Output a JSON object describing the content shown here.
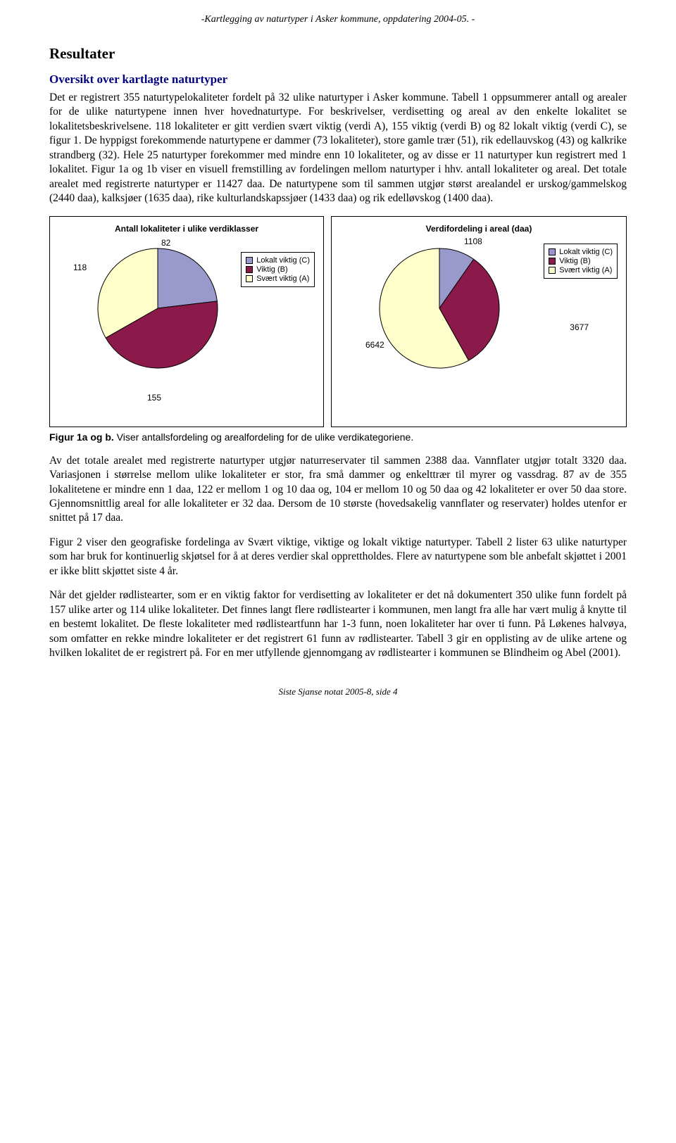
{
  "header": "-Kartlegging av naturtyper i Asker kommune, oppdatering 2004-05. -",
  "section_title": "Resultater",
  "subsection_title": "Oversikt over kartlagte naturtyper",
  "para1": "Det er registrert 355 naturtypelokaliteter fordelt på 32 ulike naturtyper i Asker kommune. Tabell 1 oppsummerer antall og arealer for de ulike naturtypene innen hver hovednaturtype. For beskrivelser, verdisetting og areal av den enkelte lokalitet se lokalitetsbeskrivelsene. 118 lokaliteter er gitt verdien svært viktig (verdi A), 155 viktig (verdi B) og 82 lokalt viktig (verdi C), se figur 1. De hyppigst forekommende naturtypene er dammer (73 lokaliteter), store gamle trær (51), rik edellauvskog (43) og kalkrike strandberg (32). Hele 25 naturtyper forekommer med mindre enn 10 lokaliteter, og av disse er 11 naturtyper kun registrert med 1 lokalitet. Figur 1a og 1b viser en visuell fremstilling av fordelingen mellom naturtyper i hhv. antall lokaliteter og areal. Det totale arealet med registrerte naturtyper er 11427 daa. De naturtypene som til sammen utgjør størst arealandel er urskog/gammelskog (2440 daa), kalksjøer (1635 daa), rike kulturlandskapssjøer (1433 daa) og rik edelløvskog (1400 daa).",
  "chart_a": {
    "title": "Antall lokaliteter i ulike verdiklasser",
    "type": "pie",
    "slices": [
      {
        "label": "82",
        "value": 82,
        "color": "#9999cc"
      },
      {
        "label": "155",
        "value": 155,
        "color": "#8b1a4a"
      },
      {
        "label": "118",
        "value": 118,
        "color": "#ffffcc"
      }
    ],
    "legend": [
      {
        "color": "#9999cc",
        "label": "Lokalt viktig (C)"
      },
      {
        "color": "#8b1a4a",
        "label": "Viktig (B)"
      },
      {
        "color": "#ffffcc",
        "label": "Svært viktig (A)"
      }
    ],
    "stroke": "#000000",
    "bg": "#ffffff"
  },
  "chart_b": {
    "title": "Verdifordeling i areal (daa)",
    "type": "pie",
    "slices": [
      {
        "label": "1108",
        "value": 1108,
        "color": "#9999cc"
      },
      {
        "label": "3677",
        "value": 3677,
        "color": "#8b1a4a"
      },
      {
        "label": "6642",
        "value": 6642,
        "color": "#ffffcc"
      }
    ],
    "legend": [
      {
        "color": "#9999cc",
        "label": "Lokalt viktig (C)"
      },
      {
        "color": "#8b1a4a",
        "label": "Viktig (B)"
      },
      {
        "color": "#ffffcc",
        "label": "Svært viktig (A)"
      }
    ],
    "stroke": "#000000",
    "bg": "#ffffff"
  },
  "fig_caption_bold": "Figur 1a og b.",
  "fig_caption_rest": " Viser antallsfordeling og arealfordeling for de ulike verdikategoriene.",
  "para2": "Av det totale arealet med registrerte naturtyper utgjør naturreservater til sammen 2388 daa. Vannflater utgjør totalt 3320 daa. Variasjonen i størrelse mellom ulike lokaliteter er stor, fra små dammer og enkelttrær til myrer og vassdrag. 87 av de 355 lokalitetene er mindre enn 1 daa, 122 er mellom 1 og 10 daa og, 104 er mellom 10 og 50 daa og 42 lokaliteter er over 50 daa store. Gjennomsnittlig areal for alle lokaliteter er 32 daa. Dersom de 10 største (hovedsakelig vannflater og reservater) holdes utenfor er snittet på 17 daa.",
  "para3": "Figur 2 viser den geografiske fordelinga av Svært viktige, viktige og lokalt viktige naturtyper. Tabell 2 lister 63 ulike naturtyper som har bruk for kontinuerlig skjøtsel for å at deres verdier skal opprettholdes. Flere av naturtypene som ble anbefalt skjøttet i 2001 er ikke blitt skjøttet siste 4 år.",
  "para4": "Når det gjelder rødlistearter, som er en viktig faktor for verdisetting av lokaliteter er det nå dokumentert 350 ulike funn fordelt på 157 ulike arter og 114 ulike lokaliteter. Det finnes langt flere rødlistearter i kommunen, men langt fra alle har vært mulig å knytte til en bestemt lokalitet. De fleste lokaliteter med rødlisteartfunn har 1-3 funn, noen lokaliteter har over ti funn. På Løkenes halvøya, som omfatter en rekke mindre lokaliteter er det registrert 61 funn av rødlistearter. Tabell 3 gir en opplisting av de ulike artene og hvilken lokalitet de er registrert på. For en mer utfyllende gjennomgang av rødlistearter i kommunen se Blindheim og Abel (2001).",
  "footer": "Siste Sjanse notat 2005-8, side 4"
}
